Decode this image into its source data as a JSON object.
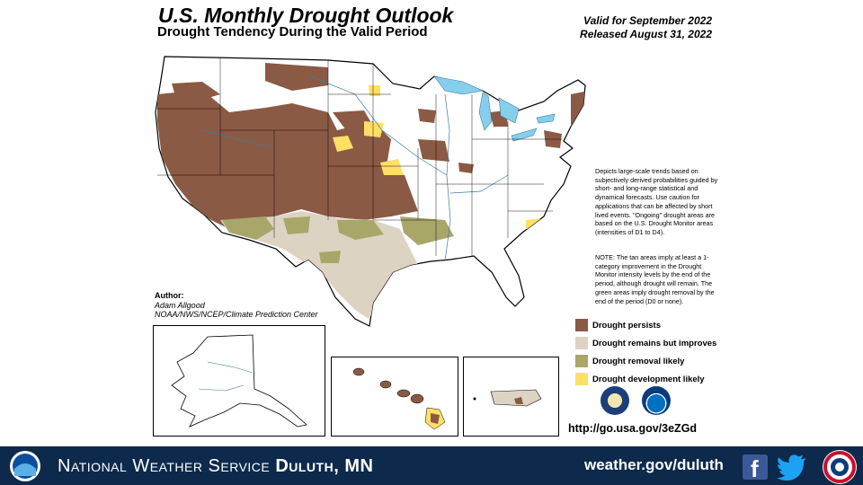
{
  "header": {
    "title": "U.S. Monthly Drought Outlook",
    "subtitle": "Drought Tendency During the Valid Period",
    "valid_for": "Valid for September 2022",
    "released": "Released August 31, 2022"
  },
  "description": "Depicts large-scale trends based on subjectively derived probabilities guided by short- and long-range statistical and dynamical forecasts. Use caution for applications that can be affected by short lived events. \"Ongoing\" drought areas are based on the U.S. Drought Monitor areas (intensities of D1 to D4).",
  "note": "NOTE: The tan areas imply at least a 1-category improvement in the Drought Monitor intensity levels by the end of the period, although drought will remain. The green areas imply drought removal by the end of the period (D0 or none).",
  "author": {
    "label": "Author:",
    "name": "Adam Allgood",
    "org": "NOAA/NWS/NCEP/Climate Prediction Center"
  },
  "legend": [
    {
      "label": "Drought persists",
      "color": "#8b5a44"
    },
    {
      "label": "Drought remains but improves",
      "color": "#ddd3c2"
    },
    {
      "label": "Drought removal likely",
      "color": "#a9a66a"
    },
    {
      "label": "Drought development likely",
      "color": "#ffdf66"
    }
  ],
  "url": "http://go.usa.gov/3eZGd",
  "footer": {
    "office_prefix": "National Weather Service",
    "office_name": "Duluth, MN",
    "website": "weather.gov/duluth"
  },
  "colors": {
    "persists": "#8b5a44",
    "improves": "#ddd3c2",
    "removal": "#a9a66a",
    "development": "#ffdf66",
    "water": "#87ceeb",
    "footer_bg": "#0d2a4c"
  }
}
